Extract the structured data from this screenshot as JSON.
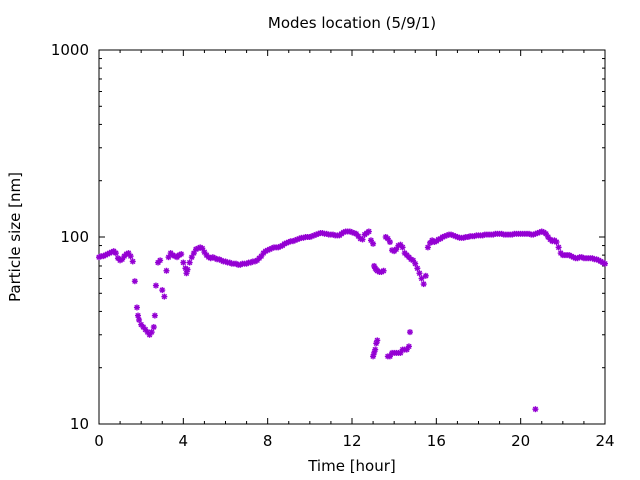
{
  "chart_data": {
    "type": "scatter",
    "title": "Modes location (5/9/1)",
    "xlabel": "Time [hour]",
    "ylabel": "Particle size [nm]",
    "xlim": [
      0,
      24
    ],
    "ylim": [
      10,
      1000
    ],
    "y_scale": "log",
    "grid": false,
    "marker_color": "#9400d3",
    "x_ticks": [
      {
        "value": 0,
        "label": "0"
      },
      {
        "value": 4,
        "label": "4"
      },
      {
        "value": 8,
        "label": "8"
      },
      {
        "value": 12,
        "label": "12"
      },
      {
        "value": 16,
        "label": "16"
      },
      {
        "value": 20,
        "label": "20"
      },
      {
        "value": 24,
        "label": "24"
      }
    ],
    "y_ticks": [
      {
        "value": 10,
        "label": "10"
      },
      {
        "value": 100,
        "label": "100"
      },
      {
        "value": 1000,
        "label": "1000"
      }
    ],
    "series": [
      {
        "points": [
          [
            0.0,
            78
          ],
          [
            0.1,
            79
          ],
          [
            0.2,
            79
          ],
          [
            0.3,
            80
          ],
          [
            0.4,
            81
          ],
          [
            0.5,
            82
          ],
          [
            0.6,
            83
          ],
          [
            0.7,
            84
          ],
          [
            0.8,
            82
          ],
          [
            0.9,
            77
          ],
          [
            1.0,
            75
          ],
          [
            1.1,
            76
          ],
          [
            1.2,
            79
          ],
          [
            1.3,
            81
          ],
          [
            1.4,
            82
          ],
          [
            1.5,
            79
          ],
          [
            1.6,
            74
          ],
          [
            1.7,
            58
          ],
          [
            1.8,
            42
          ],
          [
            1.85,
            38
          ],
          [
            1.9,
            36
          ],
          [
            2.0,
            34
          ],
          [
            2.1,
            33
          ],
          [
            2.2,
            32
          ],
          [
            2.3,
            31
          ],
          [
            2.4,
            30
          ],
          [
            2.5,
            31
          ],
          [
            2.6,
            33
          ],
          [
            2.65,
            38
          ],
          [
            2.7,
            55
          ],
          [
            2.8,
            73
          ],
          [
            2.9,
            75
          ],
          [
            3.0,
            52
          ],
          [
            3.1,
            48
          ],
          [
            3.2,
            66
          ],
          [
            3.3,
            78
          ],
          [
            3.4,
            82
          ],
          [
            3.5,
            80
          ],
          [
            3.6,
            79
          ],
          [
            3.7,
            78
          ],
          [
            3.8,
            80
          ],
          [
            3.9,
            81
          ],
          [
            4.0,
            73
          ],
          [
            4.1,
            68
          ],
          [
            4.15,
            64
          ],
          [
            4.2,
            67
          ],
          [
            4.3,
            73
          ],
          [
            4.4,
            78
          ],
          [
            4.5,
            82
          ],
          [
            4.6,
            86
          ],
          [
            4.7,
            87
          ],
          [
            4.8,
            88
          ],
          [
            4.9,
            87
          ],
          [
            5.0,
            83
          ],
          [
            5.1,
            80
          ],
          [
            5.2,
            78
          ],
          [
            5.3,
            77
          ],
          [
            5.4,
            78
          ],
          [
            5.5,
            77
          ],
          [
            5.6,
            76
          ],
          [
            5.7,
            76
          ],
          [
            5.8,
            75
          ],
          [
            5.9,
            74
          ],
          [
            6.0,
            74
          ],
          [
            6.1,
            73
          ],
          [
            6.2,
            73
          ],
          [
            6.3,
            72
          ],
          [
            6.4,
            72
          ],
          [
            6.5,
            72
          ],
          [
            6.6,
            71
          ],
          [
            6.7,
            71
          ],
          [
            6.8,
            72
          ],
          [
            6.9,
            72
          ],
          [
            7.0,
            72
          ],
          [
            7.1,
            73
          ],
          [
            7.2,
            73
          ],
          [
            7.3,
            74
          ],
          [
            7.4,
            74
          ],
          [
            7.5,
            75
          ],
          [
            7.6,
            77
          ],
          [
            7.7,
            79
          ],
          [
            7.8,
            82
          ],
          [
            7.9,
            84
          ],
          [
            8.0,
            85
          ],
          [
            8.1,
            86
          ],
          [
            8.2,
            87
          ],
          [
            8.3,
            88
          ],
          [
            8.4,
            88
          ],
          [
            8.5,
            88
          ],
          [
            8.6,
            89
          ],
          [
            8.7,
            90
          ],
          [
            8.8,
            92
          ],
          [
            8.9,
            93
          ],
          [
            9.0,
            94
          ],
          [
            9.1,
            95
          ],
          [
            9.2,
            95
          ],
          [
            9.3,
            96
          ],
          [
            9.4,
            97
          ],
          [
            9.5,
            98
          ],
          [
            9.6,
            99
          ],
          [
            9.7,
            99
          ],
          [
            9.8,
            100
          ],
          [
            9.9,
            100
          ],
          [
            10.0,
            100
          ],
          [
            10.1,
            101
          ],
          [
            10.2,
            102
          ],
          [
            10.3,
            103
          ],
          [
            10.4,
            104
          ],
          [
            10.5,
            105
          ],
          [
            10.6,
            105
          ],
          [
            10.7,
            104
          ],
          [
            10.8,
            104
          ],
          [
            10.9,
            103
          ],
          [
            11.0,
            103
          ],
          [
            11.1,
            103
          ],
          [
            11.2,
            102
          ],
          [
            11.3,
            102
          ],
          [
            11.4,
            102
          ],
          [
            11.5,
            104
          ],
          [
            11.6,
            106
          ],
          [
            11.7,
            107
          ],
          [
            11.8,
            107
          ],
          [
            11.9,
            107
          ],
          [
            12.0,
            106
          ],
          [
            12.1,
            105
          ],
          [
            12.2,
            104
          ],
          [
            12.3,
            101
          ],
          [
            12.4,
            98
          ],
          [
            12.5,
            97
          ],
          [
            12.6,
            103
          ],
          [
            12.7,
            105
          ],
          [
            12.8,
            107
          ],
          [
            12.9,
            96
          ],
          [
            13.0,
            92
          ],
          [
            13.05,
            70
          ],
          [
            13.1,
            68
          ],
          [
            13.15,
            67
          ],
          [
            13.2,
            66
          ],
          [
            13.3,
            65
          ],
          [
            13.4,
            65
          ],
          [
            13.5,
            66
          ],
          [
            13.6,
            100
          ],
          [
            13.7,
            98
          ],
          [
            13.8,
            94
          ],
          [
            13.9,
            85
          ],
          [
            14.0,
            84
          ],
          [
            14.1,
            86
          ],
          [
            14.2,
            90
          ],
          [
            14.3,
            91
          ],
          [
            14.4,
            88
          ],
          [
            14.5,
            82
          ],
          [
            14.6,
            80
          ],
          [
            14.7,
            78
          ],
          [
            14.8,
            76
          ],
          [
            14.9,
            75
          ],
          [
            15.0,
            72
          ],
          [
            15.1,
            68
          ],
          [
            15.2,
            64
          ],
          [
            15.3,
            60
          ],
          [
            15.4,
            56
          ],
          [
            15.5,
            62
          ],
          [
            15.6,
            88
          ],
          [
            15.7,
            93
          ],
          [
            15.8,
            96
          ],
          [
            15.9,
            94
          ],
          [
            16.0,
            95
          ],
          [
            16.1,
            97
          ],
          [
            16.2,
            98
          ],
          [
            16.3,
            100
          ],
          [
            16.4,
            101
          ],
          [
            16.5,
            102
          ],
          [
            16.6,
            103
          ],
          [
            16.7,
            103
          ],
          [
            16.8,
            102
          ],
          [
            16.9,
            101
          ],
          [
            17.0,
            100
          ],
          [
            17.1,
            99
          ],
          [
            17.2,
            99
          ],
          [
            17.3,
            99
          ],
          [
            17.4,
            100
          ],
          [
            17.5,
            100
          ],
          [
            17.6,
            101
          ],
          [
            17.7,
            101
          ],
          [
            17.8,
            101
          ],
          [
            17.9,
            102
          ],
          [
            18.0,
            102
          ],
          [
            18.1,
            102
          ],
          [
            18.2,
            102
          ],
          [
            18.3,
            103
          ],
          [
            18.4,
            103
          ],
          [
            18.5,
            103
          ],
          [
            18.6,
            103
          ],
          [
            18.7,
            103
          ],
          [
            18.8,
            104
          ],
          [
            18.9,
            104
          ],
          [
            19.0,
            104
          ],
          [
            19.1,
            104
          ],
          [
            19.2,
            103
          ],
          [
            19.3,
            103
          ],
          [
            19.4,
            103
          ],
          [
            19.5,
            103
          ],
          [
            19.6,
            103
          ],
          [
            19.7,
            104
          ],
          [
            19.8,
            104
          ],
          [
            19.9,
            104
          ],
          [
            20.0,
            104
          ],
          [
            20.1,
            104
          ],
          [
            20.2,
            104
          ],
          [
            20.3,
            104
          ],
          [
            20.4,
            104
          ],
          [
            20.5,
            103
          ],
          [
            20.6,
            103
          ],
          [
            20.7,
            104
          ],
          [
            20.8,
            105
          ],
          [
            20.9,
            106
          ],
          [
            21.0,
            107
          ],
          [
            21.1,
            106
          ],
          [
            21.2,
            104
          ],
          [
            21.3,
            100
          ],
          [
            21.4,
            97
          ],
          [
            21.5,
            95
          ],
          [
            21.6,
            96
          ],
          [
            21.7,
            94
          ],
          [
            21.8,
            88
          ],
          [
            21.9,
            82
          ],
          [
            22.0,
            80
          ],
          [
            22.1,
            80
          ],
          [
            22.2,
            80
          ],
          [
            22.3,
            80
          ],
          [
            22.4,
            79
          ],
          [
            22.5,
            78
          ],
          [
            22.6,
            77
          ],
          [
            22.7,
            77
          ],
          [
            22.8,
            78
          ],
          [
            22.9,
            78
          ],
          [
            23.0,
            77
          ],
          [
            23.1,
            77
          ],
          [
            23.2,
            77
          ],
          [
            23.3,
            77
          ],
          [
            23.4,
            77
          ],
          [
            23.5,
            76
          ],
          [
            23.6,
            76
          ],
          [
            23.7,
            75
          ],
          [
            23.8,
            74
          ],
          [
            23.9,
            73
          ],
          [
            24.0,
            72
          ],
          [
            13.0,
            23
          ],
          [
            13.05,
            24
          ],
          [
            13.1,
            25
          ],
          [
            13.15,
            27
          ],
          [
            13.2,
            28
          ],
          [
            13.7,
            23
          ],
          [
            13.8,
            23
          ],
          [
            13.9,
            24
          ],
          [
            14.0,
            24
          ],
          [
            14.1,
            24
          ],
          [
            14.2,
            24
          ],
          [
            14.3,
            24
          ],
          [
            14.4,
            25
          ],
          [
            14.5,
            25
          ],
          [
            14.6,
            25
          ],
          [
            14.7,
            26
          ],
          [
            14.75,
            31
          ],
          [
            20.7,
            12
          ]
        ]
      }
    ]
  }
}
